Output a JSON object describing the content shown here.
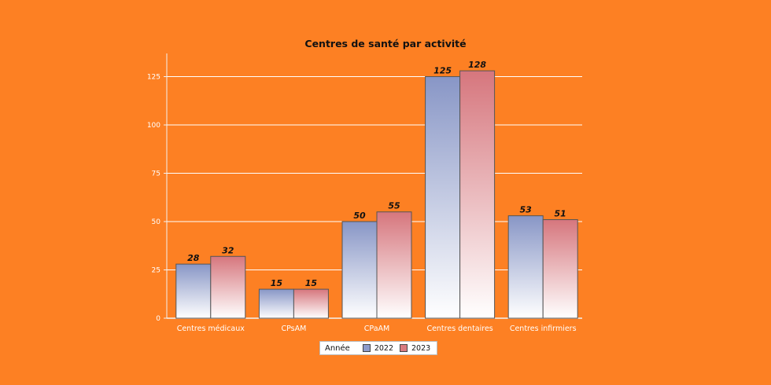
{
  "chart_data": {
    "type": "bar",
    "title": "Centres de santé par activité",
    "xlabel": "",
    "ylabel": "",
    "categories": [
      "Centres médicaux",
      "CPsAM",
      "CPaAM",
      "Centres dentaires",
      "Centres infirmiers"
    ],
    "series": [
      {
        "name": "2022",
        "values": [
          28,
          15,
          50,
          125,
          53
        ],
        "color": "#8e9ccc"
      },
      {
        "name": "2023",
        "values": [
          32,
          15,
          55,
          128,
          51
        ],
        "color": "#d97b80"
      }
    ],
    "ylim": [
      0,
      137
    ],
    "yticks": [
      0,
      25,
      50,
      75,
      100,
      125
    ],
    "grid": true,
    "legend_title": "Année",
    "legend_position": "bottom",
    "colors": {
      "background": "#fd8023",
      "grid": "#ffffff",
      "axis": "#f2f2f2"
    }
  }
}
